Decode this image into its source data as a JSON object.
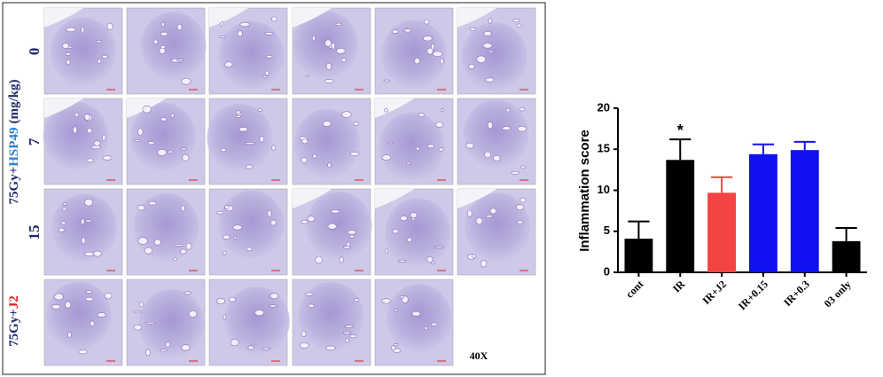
{
  "figure": {
    "group_label": {
      "prefix": "75Gy+",
      "drug": "HSP49",
      "unit": "(mg/kg)"
    },
    "row_labels": [
      "0",
      "7",
      "15"
    ],
    "j2_label": {
      "prefix": "75Gy+",
      "drug": "J2"
    },
    "magnification": "40X"
  },
  "chart_data": {
    "type": "bar",
    "y_label": "Inflammation score",
    "categories": [
      "cont",
      "IR",
      "IR+J2",
      "IR+0.15",
      "IR+0.3",
      "03 only"
    ],
    "values": [
      4.1,
      13.7,
      9.7,
      14.4,
      14.9,
      3.8
    ],
    "errors": [
      2.1,
      2.5,
      1.9,
      1.2,
      1.0,
      1.6
    ],
    "colors": [
      "#000000",
      "#000000",
      "#f24444",
      "#1010f0",
      "#1010f0",
      "#000000"
    ],
    "annotations": [
      {
        "category_index": 1,
        "text": "*"
      }
    ],
    "ylim": [
      0,
      20
    ],
    "yticks": [
      0,
      5,
      10,
      15,
      20
    ]
  }
}
